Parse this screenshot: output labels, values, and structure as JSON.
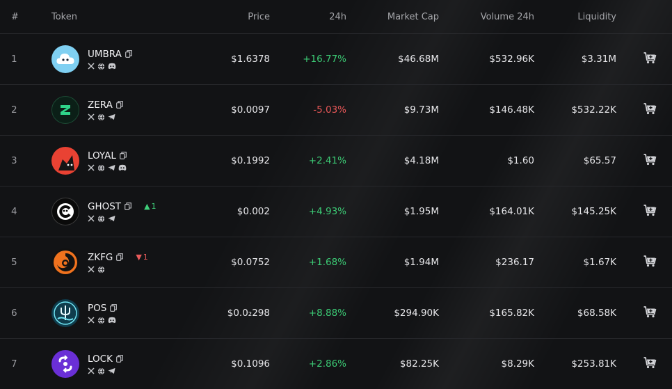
{
  "headers": {
    "index": "#",
    "token": "Token",
    "price": "Price",
    "change": "24h",
    "market_cap": "Market Cap",
    "volume": "Volume 24h",
    "liquidity": "Liquidity"
  },
  "rows": [
    {
      "index": "1",
      "symbol": "UMBRA",
      "socials": [
        "x-icon",
        "globe-icon",
        "discord-icon"
      ],
      "rank_change": "",
      "rank_dir": "",
      "price": "$1.6378",
      "change": "+16.77%",
      "change_dir": "up",
      "market_cap": "$46.68M",
      "volume": "$532.96K",
      "liquidity": "$3.31M",
      "logo": "cloud-logo"
    },
    {
      "index": "2",
      "symbol": "ZERA",
      "socials": [
        "x-icon",
        "globe-icon",
        "telegram-icon"
      ],
      "rank_change": "",
      "rank_dir": "",
      "price": "$0.0097",
      "change": "-5.03%",
      "change_dir": "down",
      "market_cap": "$9.73M",
      "volume": "$146.48K",
      "liquidity": "$532.22K",
      "logo": "z-logo"
    },
    {
      "index": "3",
      "symbol": "LOYAL",
      "socials": [
        "x-icon",
        "globe-icon",
        "telegram-icon",
        "discord-icon"
      ],
      "rank_change": "",
      "rank_dir": "",
      "price": "$0.1992",
      "change": "+2.41%",
      "change_dir": "up",
      "market_cap": "$4.18M",
      "volume": "$1.60",
      "liquidity": "$65.57",
      "logo": "cat-logo"
    },
    {
      "index": "4",
      "symbol": "GHOST",
      "socials": [
        "x-icon",
        "globe-icon",
        "telegram-icon"
      ],
      "rank_change": "1",
      "rank_dir": "up",
      "price": "$0.002",
      "change": "+4.93%",
      "change_dir": "up",
      "market_cap": "$1.95M",
      "volume": "$164.01K",
      "liquidity": "$145.25K",
      "logo": "ghost-logo"
    },
    {
      "index": "5",
      "symbol": "ZKFG",
      "socials": [
        "x-icon",
        "globe-icon"
      ],
      "rank_change": "1",
      "rank_dir": "down",
      "price": "$0.0752",
      "change": "+1.68%",
      "change_dir": "up",
      "market_cap": "$1.94M",
      "volume": "$236.17",
      "liquidity": "$1.67K",
      "logo": "swirl-logo"
    },
    {
      "index": "6",
      "symbol": "POS",
      "socials": [
        "x-icon",
        "globe-icon",
        "discord-icon"
      ],
      "rank_change": "",
      "rank_dir": "",
      "price": "$0.0₂298",
      "change": "+8.88%",
      "change_dir": "up",
      "market_cap": "$294.90K",
      "volume": "$165.82K",
      "liquidity": "$68.58K",
      "logo": "trident-logo"
    },
    {
      "index": "7",
      "symbol": "LOCK",
      "socials": [
        "x-icon",
        "globe-icon",
        "telegram-icon"
      ],
      "rank_change": "",
      "rank_dir": "",
      "price": "$0.1096",
      "change": "+2.86%",
      "change_dir": "up",
      "market_cap": "$82.25K",
      "volume": "$8.29K",
      "liquidity": "$253.81K",
      "logo": "lock-logo"
    }
  ],
  "colors": {
    "positive": "#3ccb75",
    "negative": "#ea5858",
    "background": "#121315"
  }
}
